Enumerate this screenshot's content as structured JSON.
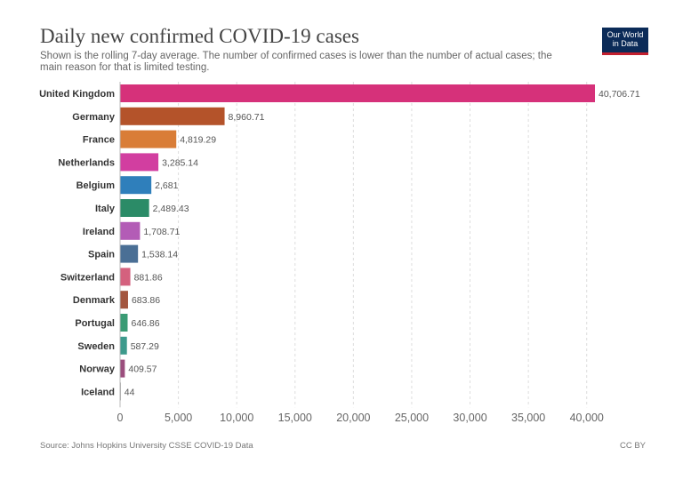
{
  "header": {
    "title": "Daily new confirmed COVID-19 cases",
    "subtitle": "Shown is the rolling 7-day average. The number of confirmed cases is lower than the number of actual cases; the main reason for that is limited testing."
  },
  "logo": {
    "line1": "Our World",
    "line2": "in Data"
  },
  "footer": {
    "source": "Source: Johns Hopkins University CSSE COVID-19 Data",
    "license": "CC BY"
  },
  "colors": {
    "axis": "#bbbbbb",
    "grid": "#dddddd",
    "label": "#333333",
    "value": "#555555"
  },
  "chart_data": {
    "type": "bar",
    "orientation": "horizontal",
    "title": "Daily new confirmed COVID-19 cases",
    "categories": [
      "United Kingdom",
      "Germany",
      "France",
      "Netherlands",
      "Belgium",
      "Italy",
      "Ireland",
      "Spain",
      "Switzerland",
      "Denmark",
      "Portugal",
      "Sweden",
      "Norway",
      "Iceland"
    ],
    "values": [
      40706.71,
      8960.71,
      4819.29,
      3285.14,
      2681,
      2489.43,
      1708.71,
      1538.14,
      881.86,
      683.86,
      646.86,
      587.29,
      409.57,
      44
    ],
    "value_labels": [
      "40,706.71",
      "8,960.71",
      "4,819.29",
      "3,285.14",
      "2,681",
      "2,489.43",
      "1,708.71",
      "1,538.14",
      "881.86",
      "683.86",
      "646.86",
      "587.29",
      "409.57",
      "44"
    ],
    "bar_colors": [
      "#d6317a",
      "#b4532a",
      "#d97d37",
      "#d23ea0",
      "#2f7fbb",
      "#2b8b67",
      "#b35cb6",
      "#4a6f95",
      "#d4617e",
      "#a3563f",
      "#3a9b74",
      "#3d9a8c",
      "#9b4e7d",
      "#777777"
    ],
    "xticks": [
      0,
      5000,
      10000,
      15000,
      20000,
      25000,
      30000,
      35000,
      40000
    ],
    "xtick_labels": [
      "0",
      "5,000",
      "10,000",
      "15,000",
      "20,000",
      "25,000",
      "30,000",
      "35,000",
      "40,000"
    ],
    "xlim": [
      0,
      40706.71
    ],
    "xlabel": "",
    "ylabel": ""
  }
}
